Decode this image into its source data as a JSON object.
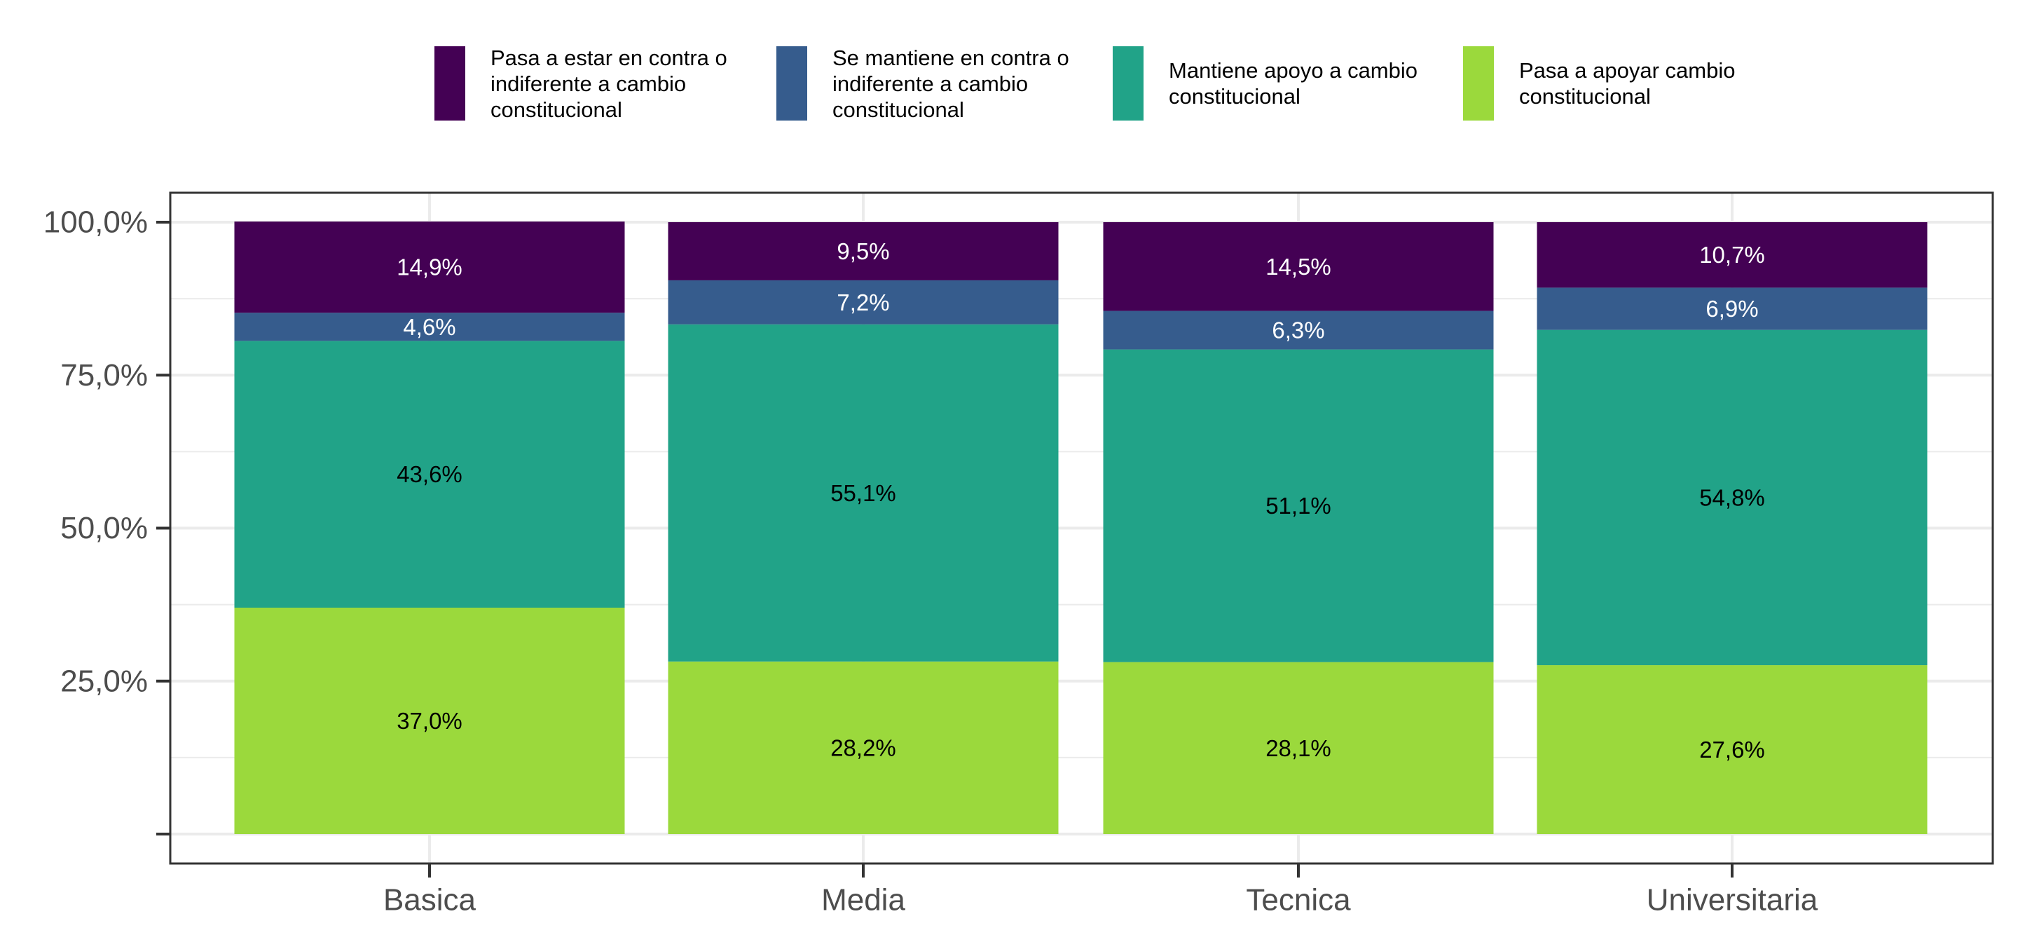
{
  "chart_data": {
    "type": "bar",
    "stacked": true,
    "title": "",
    "xlabel": "",
    "ylabel": "",
    "categories": [
      "Basica",
      "Media",
      "Tecnica",
      "Universitaria"
    ],
    "ylim": [
      0,
      100
    ],
    "y_ticks": [
      0,
      25,
      50,
      75,
      100
    ],
    "y_tick_labels": [
      "",
      "25,0%",
      "50,0%",
      "75,0%",
      "100,0%"
    ],
    "grid": true,
    "legend_position": "top",
    "series": [
      {
        "name": "Pasa a apoyar cambio constitucional",
        "color": "#9BD93C",
        "label_color": "#000000",
        "values": [
          37.0,
          28.2,
          28.1,
          27.6
        ],
        "labels": [
          "37,0%",
          "28,2%",
          "28,1%",
          "27,6%"
        ]
      },
      {
        "name": "Mantiene apoyo a cambio constitucional",
        "color": "#21A388",
        "label_color": "#000000",
        "values": [
          43.6,
          55.1,
          51.1,
          54.8
        ],
        "labels": [
          "43,6%",
          "55,1%",
          "51,1%",
          "54,8%"
        ]
      },
      {
        "name": "Se mantiene en contra o indiferente a cambio constitucional",
        "color": "#365C8D",
        "label_color": "#ffffff",
        "values": [
          4.6,
          7.2,
          6.3,
          6.9
        ],
        "labels": [
          "4,6%",
          "7,2%",
          "6,3%",
          "6,9%"
        ]
      },
      {
        "name": "Pasa a estar en contra o indiferente a cambio constitucional",
        "color": "#440154",
        "label_color": "#ffffff",
        "values": [
          14.9,
          9.5,
          14.5,
          10.7
        ],
        "labels": [
          "14,9%",
          "9,5%",
          "14,5%",
          "10,7%"
        ]
      }
    ],
    "legend": [
      {
        "label": "Pasa a estar en contra o indiferente a cambio constitucional",
        "color": "#440154"
      },
      {
        "label": "Se mantiene en contra o indiferente a cambio constitucional",
        "color": "#365C8D"
      },
      {
        "label": "Mantiene apoyo a cambio constitucional",
        "color": "#21A388"
      },
      {
        "label": "Pasa a apoyar cambio constitucional",
        "color": "#9BD93C"
      }
    ]
  }
}
